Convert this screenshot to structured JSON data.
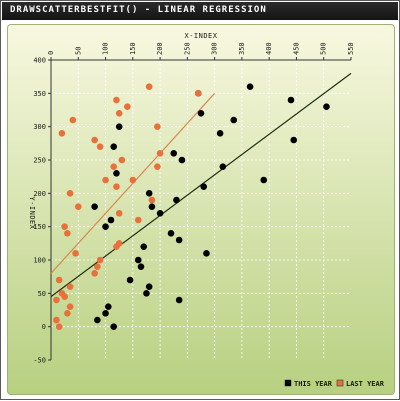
{
  "window": {
    "title": "DRAWSCATTERBESTFIT() - LINEAR REGRESSION"
  },
  "colors": {
    "background_top": "#f8f8e0",
    "background_bottom": "#b7d080",
    "this_year": "#000000",
    "last_year": "#e8703a",
    "this_year_fit": "#1f2f10",
    "last_year_fit": "#d88850",
    "grid": "#ffffff"
  },
  "chart_data": {
    "type": "scatter",
    "title": "DRAWSCATTERBESTFIT() - LINEAR REGRESSION",
    "xlabel": "X-INDEX",
    "ylabel": "Y-INDEX",
    "xlim": [
      0,
      550
    ],
    "ylim": [
      -50,
      400
    ],
    "x_ticks": [
      0,
      50,
      100,
      150,
      200,
      250,
      300,
      350,
      400,
      450,
      500,
      550
    ],
    "y_ticks": [
      -50,
      0,
      50,
      100,
      150,
      200,
      250,
      300,
      350,
      400
    ],
    "x_axis_position": "top",
    "grid": true,
    "legend_position": "bottom-right",
    "series": [
      {
        "name": "THIS YEAR",
        "color": "#000000",
        "points": [
          [
            105,
            30
          ],
          [
            115,
            0
          ],
          [
            85,
            10
          ],
          [
            100,
            20
          ],
          [
            110,
            160
          ],
          [
            100,
            150
          ],
          [
            80,
            180
          ],
          [
            120,
            230
          ],
          [
            115,
            270
          ],
          [
            125,
            300
          ],
          [
            145,
            70
          ],
          [
            160,
            100
          ],
          [
            165,
            90
          ],
          [
            170,
            120
          ],
          [
            175,
            50
          ],
          [
            180,
            60
          ],
          [
            180,
            200
          ],
          [
            185,
            180
          ],
          [
            200,
            170
          ],
          [
            220,
            140
          ],
          [
            225,
            260
          ],
          [
            230,
            190
          ],
          [
            235,
            130
          ],
          [
            240,
            250
          ],
          [
            235,
            40
          ],
          [
            270,
            350
          ],
          [
            275,
            320
          ],
          [
            280,
            210
          ],
          [
            285,
            110
          ],
          [
            310,
            290
          ],
          [
            315,
            240
          ],
          [
            335,
            310
          ],
          [
            365,
            360
          ],
          [
            390,
            220
          ],
          [
            440,
            340
          ],
          [
            445,
            280
          ],
          [
            505,
            330
          ]
        ],
        "fit": [
          [
            0,
            45
          ],
          [
            550,
            380
          ]
        ]
      },
      {
        "name": "LAST YEAR",
        "color": "#e8703a",
        "points": [
          [
            10,
            10
          ],
          [
            15,
            0
          ],
          [
            20,
            50
          ],
          [
            25,
            45
          ],
          [
            30,
            20
          ],
          [
            35,
            30
          ],
          [
            35,
            60
          ],
          [
            15,
            70
          ],
          [
            10,
            40
          ],
          [
            25,
            150
          ],
          [
            30,
            140
          ],
          [
            45,
            110
          ],
          [
            50,
            180
          ],
          [
            35,
            200
          ],
          [
            80,
            80
          ],
          [
            85,
            90
          ],
          [
            90,
            100
          ],
          [
            120,
            120
          ],
          [
            125,
            125
          ],
          [
            120,
            210
          ],
          [
            125,
            170
          ],
          [
            115,
            240
          ],
          [
            100,
            220
          ],
          [
            130,
            250
          ],
          [
            150,
            220
          ],
          [
            160,
            160
          ],
          [
            185,
            190
          ],
          [
            195,
            240
          ],
          [
            200,
            260
          ],
          [
            195,
            300
          ],
          [
            140,
            330
          ],
          [
            120,
            340
          ],
          [
            125,
            320
          ],
          [
            180,
            360
          ],
          [
            80,
            280
          ],
          [
            90,
            270
          ],
          [
            20,
            290
          ],
          [
            40,
            310
          ],
          [
            270,
            350
          ]
        ],
        "fit": [
          [
            0,
            80
          ],
          [
            300,
            350
          ]
        ]
      }
    ]
  }
}
